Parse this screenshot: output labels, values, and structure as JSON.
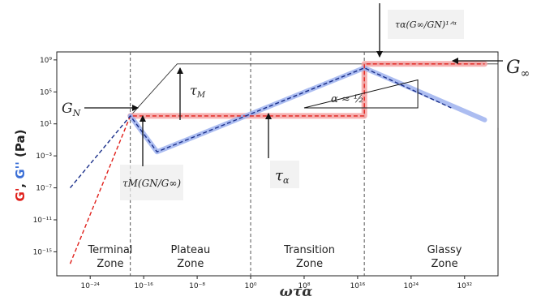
{
  "chart_data": {
    "type": "line",
    "x_scale": "log",
    "y_scale": "log",
    "xlim": [
      1e-29,
      1e+37
    ],
    "ylim": [
      1e-18,
      10000000000.0
    ],
    "xlabel": "ωτα",
    "ylabel_parts": [
      {
        "text": "G'",
        "color": "#e0201b"
      },
      {
        "text": ", ",
        "color": "#222222"
      },
      {
        "text": "G''",
        "color": "#3b6fd6"
      },
      {
        "text": " (Pa)",
        "color": "#222222"
      }
    ],
    "x_ticks": [
      {
        "exp": -24,
        "label": "10⁻²⁴"
      },
      {
        "exp": -16,
        "label": "10⁻¹⁶"
      },
      {
        "exp": -8,
        "label": "10⁻⁸"
      },
      {
        "exp": 0,
        "label": "10⁰"
      },
      {
        "exp": 8,
        "label": "10⁸"
      },
      {
        "exp": 16,
        "label": "10¹⁶"
      },
      {
        "exp": 24,
        "label": "10²⁴"
      },
      {
        "exp": 32,
        "label": "10³²"
      }
    ],
    "y_ticks": [
      {
        "exp": 9,
        "label": "10⁹"
      },
      {
        "exp": 5,
        "label": "10⁵"
      },
      {
        "exp": 1,
        "label": "10¹"
      },
      {
        "exp": -3,
        "label": "10⁻³"
      },
      {
        "exp": -7,
        "label": "10⁻⁷"
      },
      {
        "exp": -11,
        "label": "10⁻¹¹"
      },
      {
        "exp": -15,
        "label": "10⁻¹⁵"
      }
    ],
    "series": [
      {
        "key": "gp_model",
        "style": "dashed",
        "color": "#e0201b",
        "width": 1.4,
        "points": [
          [
            -27,
            -16.5
          ],
          [
            -18,
            2
          ],
          [
            17,
            2
          ],
          [
            17,
            8.5
          ],
          [
            35,
            8.5
          ]
        ]
      },
      {
        "key": "gpp_model",
        "style": "dashed",
        "color": "#1a2f8a",
        "width": 1.4,
        "points": [
          [
            -27,
            -7
          ],
          [
            -18,
            2
          ],
          [
            -14,
            -2.5
          ],
          [
            17,
            8
          ],
          [
            30,
            3
          ]
        ]
      },
      {
        "key": "gp_data",
        "style": "band",
        "color": "#f5a3a3",
        "width": 7,
        "points": [
          [
            -18,
            2
          ],
          [
            17,
            2
          ],
          [
            17,
            8.5
          ],
          [
            35,
            8.5
          ]
        ]
      },
      {
        "key": "gpp_data",
        "style": "band",
        "color": "#9db2ee",
        "width": 6,
        "points": [
          [
            -18,
            2
          ],
          [
            -14,
            -2.5
          ],
          [
            17,
            8
          ],
          [
            35,
            1.5
          ]
        ]
      }
    ],
    "guide_lines": [
      {
        "points": [
          [
            -18,
            2
          ],
          [
            -11,
            8.5
          ],
          [
            37,
            8.5
          ]
        ]
      },
      {
        "points": [
          [
            37,
            9.5
          ],
          [
            37,
            0.5
          ]
        ]
      }
    ],
    "slope_triangle": [
      [
        8,
        3
      ],
      [
        25,
        3
      ],
      [
        25,
        6.5
      ]
    ],
    "vlines_x": [
      -18,
      0,
      17
    ],
    "zones": [
      {
        "line1": "Terminal",
        "line2": "Zone",
        "x": -21
      },
      {
        "line1": "Plateau",
        "line2": "Zone",
        "x": -9
      },
      {
        "line1": "Transition",
        "line2": "Zone",
        "x": 8.8
      },
      {
        "line1": "Glassy",
        "line2": "Zone",
        "x": 29
      }
    ],
    "annotations": {
      "gn": "G",
      "gn_sub": "N",
      "ginf": "G",
      "ginf_sub": "∞",
      "tau_m": "τ",
      "tau_m_sub": "M",
      "tau_alpha": "τ",
      "tau_alpha_sub": "α",
      "alpha_eq": "α ≈ ½",
      "tau_m_ratio": "τM(GN/G∞)",
      "tau_alpha_ratio": "τα(G∞/GN)¹ᐟᵅ"
    }
  }
}
